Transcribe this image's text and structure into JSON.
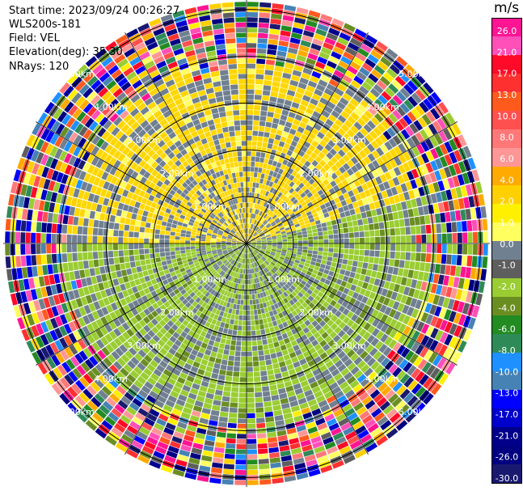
{
  "header": {
    "start_time": "Start time: 2023/09/24 00:26:27",
    "instrument": "WLS200s-181",
    "field": "Field: VEL",
    "elevation": "Elevation(deg): 35.30",
    "nrays": "NRays: 120"
  },
  "chart_data": {
    "type": "heatmap",
    "projection": "polar-ppi",
    "title": "",
    "field": "VEL",
    "units": "m/s",
    "nrays": 120,
    "elevation_deg": 35.3,
    "range_rings_km": [
      1,
      2,
      3,
      4,
      5
    ],
    "ring_labels": [
      "1.00km",
      "2.00km",
      "3.00km",
      "4.00km",
      "5.00km"
    ],
    "spokes_deg": [
      0,
      30,
      60,
      90,
      120,
      150,
      180,
      210,
      240,
      270,
      300,
      330
    ],
    "colorbar": {
      "unit": "m/s",
      "tick_labels": [
        "26.0",
        "21.0",
        "17.0",
        "13.0",
        "10.0",
        "8.0",
        "6.0",
        "4.0",
        "2.0",
        "1.0",
        "0.0",
        "-1.0",
        "-2.0",
        "-4.0",
        "-6.0",
        "-8.0",
        "-10.0",
        "-13.0",
        "-17.0",
        "-21.0",
        "-26.0",
        "-30.0"
      ],
      "colors": [
        "#ff1493",
        "#ff4fb8",
        "#ff0a28",
        "#ff3030",
        "#ff5a1e",
        "#ff5050",
        "#ff7878",
        "#ff9696",
        "#ffaa00",
        "#ffd000",
        "#fff000",
        "#ffff60",
        "#708090",
        "#5e5e5e",
        "#9acd32",
        "#6b8e23",
        "#228b22",
        "#2e8b57",
        "#1e90ff",
        "#4682b4",
        "#0000ff",
        "#0000cd",
        "#00008b",
        "#000080",
        "#191970"
      ]
    },
    "pattern": {
      "positive_color": "#ffd700",
      "zero_color": "#708090",
      "negative_color": "#9acd32",
      "noise_start_km": 3.6
    }
  }
}
